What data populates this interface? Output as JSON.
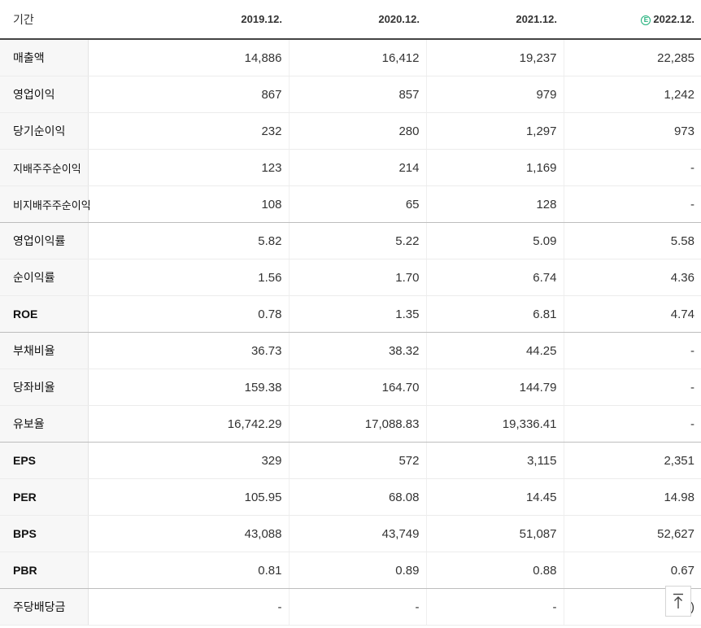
{
  "table": {
    "corner_label": "기간",
    "columns": [
      {
        "label": "2019.12.",
        "estimate": false
      },
      {
        "label": "2020.12.",
        "estimate": false
      },
      {
        "label": "2021.12.",
        "estimate": false
      },
      {
        "label": "2022.12.",
        "estimate": true,
        "badge": "E"
      }
    ],
    "rows": [
      {
        "label": "매출액",
        "values": [
          "14,886",
          "16,412",
          "19,237",
          "22,285"
        ]
      },
      {
        "label": "영업이익",
        "values": [
          "867",
          "857",
          "979",
          "1,242"
        ]
      },
      {
        "label": "당기순이익",
        "values": [
          "232",
          "280",
          "1,297",
          "973"
        ]
      },
      {
        "label": "지배주주순이익",
        "values": [
          "123",
          "214",
          "1,169",
          "-"
        ]
      },
      {
        "label": "비지배주주순이익",
        "values": [
          "108",
          "65",
          "128",
          "-"
        ]
      },
      {
        "label": "영업이익률",
        "values": [
          "5.82",
          "5.22",
          "5.09",
          "5.58"
        ]
      },
      {
        "label": "순이익률",
        "values": [
          "1.56",
          "1.70",
          "6.74",
          "4.36"
        ]
      },
      {
        "label": "ROE",
        "values": [
          "0.78",
          "1.35",
          "6.81",
          "4.74"
        ]
      },
      {
        "label": "부채비율",
        "values": [
          "36.73",
          "38.32",
          "44.25",
          "-"
        ]
      },
      {
        "label": "당좌비율",
        "values": [
          "159.38",
          "164.70",
          "144.79",
          "-"
        ]
      },
      {
        "label": "유보율",
        "values": [
          "16,742.29",
          "17,088.83",
          "19,336.41",
          "-"
        ]
      },
      {
        "label": "EPS",
        "values": [
          "329",
          "572",
          "3,115",
          "2,351"
        ]
      },
      {
        "label": "PER",
        "values": [
          "105.95",
          "68.08",
          "14.45",
          "14.98"
        ]
      },
      {
        "label": "BPS",
        "values": [
          "43,088",
          "43,749",
          "51,087",
          "52,627"
        ]
      },
      {
        "label": "PBR",
        "values": [
          "0.81",
          "0.89",
          "0.88",
          "0.67"
        ]
      },
      {
        "label": "주당배당금",
        "values": [
          "-",
          "-",
          "-",
          ")"
        ]
      }
    ]
  },
  "scroll_top_icon": "arrow-up-to-top-icon"
}
